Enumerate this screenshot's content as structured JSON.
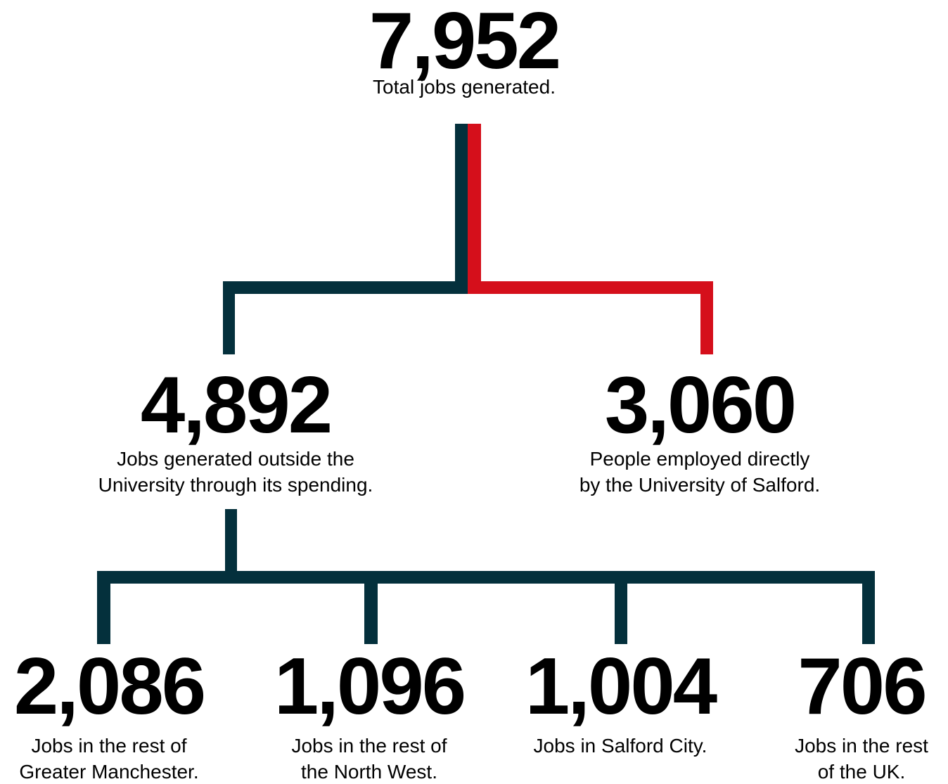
{
  "nodes": [
    {
      "value": "7,952",
      "label": [
        "Total jobs generated."
      ]
    },
    {
      "value": "4,892",
      "label": [
        "Jobs generated outside the",
        "University through its spending."
      ]
    },
    {
      "value": "3,060",
      "label": [
        "People employed directly",
        "by the University of Salford."
      ]
    },
    {
      "value": "2,086",
      "label": [
        "Jobs in the rest of",
        "Greater Manchester."
      ]
    },
    {
      "value": "1,096",
      "label": [
        "Jobs in the rest of",
        "the North West."
      ]
    },
    {
      "value": "1,004",
      "label": [
        "Jobs in Salford City."
      ]
    },
    {
      "value": "706",
      "label": [
        "Jobs in the rest",
        "of the UK."
      ]
    }
  ]
}
